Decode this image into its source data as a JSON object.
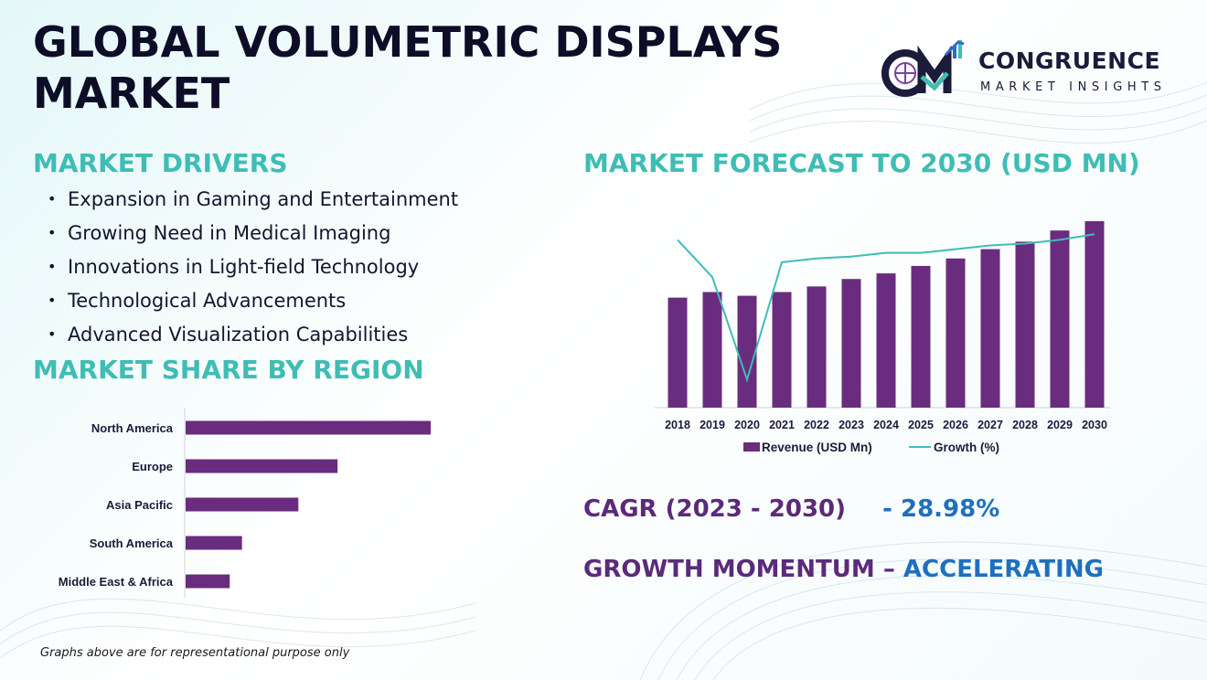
{
  "title": "GLOBAL VOLUMETRIC DISPLAYS MARKET",
  "logo": {
    "name": "CONGRUENCE",
    "subtitle": "MARKET INSIGHTS",
    "colors": {
      "dark": "#1b1b3a",
      "purple": "#7a3fa0",
      "teal": "#3fbdb5",
      "blue": "#2a6fc7"
    }
  },
  "drivers": {
    "heading": "MARKET DRIVERS",
    "items": [
      "Expansion in Gaming and Entertainment",
      "Growing Need in Medical Imaging",
      "Innovations in Light-field Technology",
      "Technological Advancements",
      "Advanced Visualization Capabilities"
    ]
  },
  "region": {
    "heading": "MARKET SHARE BY REGION"
  },
  "forecast": {
    "heading": "MARKET FORECAST TO 2030 (USD MN)"
  },
  "cagr": {
    "label": "CAGR (2023 - 2030)",
    "value": "- 28.98%"
  },
  "momentum": {
    "label": "GROWTH MOMENTUM –",
    "value": "ACCELERATING"
  },
  "footnote": "Graphs above are for representational purpose only",
  "colors": {
    "heading": "#3fbdb5",
    "bar": "#6a2c7e",
    "line": "#3fbdb5",
    "title": "#0d0d28",
    "accent_blue": "#1f6fbf",
    "accent_purple": "#5c2a7a"
  },
  "chart_data": [
    {
      "type": "bar",
      "orientation": "horizontal",
      "categories": [
        "North America",
        "Europe",
        "Asia Pacific",
        "South America",
        "Middle East & Africa"
      ],
      "values": [
        100,
        62,
        46,
        23,
        18
      ],
      "xlim": [
        0,
        100
      ],
      "grid": false,
      "legend": "none"
    },
    {
      "type": "bar",
      "categories": [
        "2018",
        "2019",
        "2020",
        "2021",
        "2022",
        "2023",
        "2024",
        "2025",
        "2026",
        "2027",
        "2028",
        "2029",
        "2030"
      ],
      "series": [
        {
          "name": "Revenue (USD Mn)",
          "type": "bar",
          "values": [
            59,
            62,
            60,
            62,
            65,
            69,
            72,
            76,
            80,
            85,
            89,
            95,
            100
          ]
        },
        {
          "name": "Growth (%)",
          "type": "line",
          "values": [
            90,
            70,
            15,
            78,
            80,
            81,
            83,
            83,
            85,
            87,
            88,
            90,
            93
          ]
        }
      ],
      "ylim": [
        0,
        100
      ],
      "grid": false,
      "legend": "bottom"
    }
  ]
}
